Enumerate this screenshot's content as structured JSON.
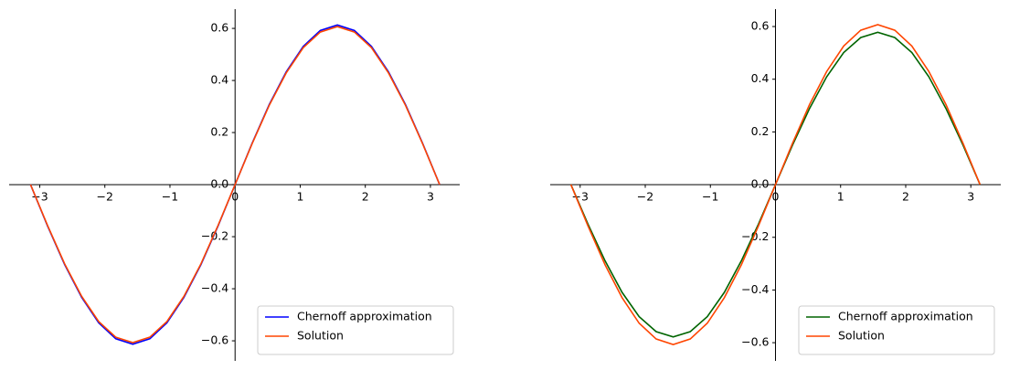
{
  "chart_data": [
    {
      "type": "line",
      "legend": "lower right",
      "x": [
        -3.1416,
        -2.8798,
        -2.618,
        -2.3562,
        -2.0944,
        -1.8326,
        -1.5708,
        -1.309,
        -1.0472,
        -0.7854,
        -0.5236,
        -0.2618,
        0,
        0.2618,
        0.5236,
        0.7854,
        1.0472,
        1.309,
        1.5708,
        1.8326,
        2.0944,
        2.3562,
        2.618,
        2.8798,
        3.1416
      ],
      "series": [
        {
          "name": "Chernoff approximation",
          "color": "#0000ff",
          "values": [
            0,
            -0.159,
            -0.307,
            -0.433,
            -0.531,
            -0.592,
            -0.613,
            -0.592,
            -0.531,
            -0.433,
            -0.307,
            -0.159,
            0,
            0.159,
            0.307,
            0.433,
            0.531,
            0.592,
            0.613,
            0.592,
            0.531,
            0.433,
            0.307,
            0.159,
            0
          ]
        },
        {
          "name": "Solution",
          "color": "#ff4500",
          "values": [
            0,
            -0.157,
            -0.304,
            -0.429,
            -0.526,
            -0.586,
            -0.607,
            -0.586,
            -0.526,
            -0.429,
            -0.304,
            -0.157,
            0,
            0.157,
            0.304,
            0.429,
            0.526,
            0.586,
            0.607,
            0.586,
            0.526,
            0.429,
            0.304,
            0.157,
            0
          ]
        }
      ],
      "xlim": [
        -3.47,
        3.45
      ],
      "ylim": [
        -0.677,
        0.674
      ],
      "xticks": [
        {
          "value": -3,
          "label": "−3"
        },
        {
          "value": -2,
          "label": "−2"
        },
        {
          "value": -1,
          "label": "−1"
        },
        0,
        1,
        2,
        3
      ],
      "yticks": [
        {
          "value": -0.6,
          "label": "−0.6"
        },
        {
          "value": -0.4,
          "label": "−0.4"
        },
        {
          "value": -0.2,
          "label": "−0.2"
        },
        {
          "value": 0,
          "label": "0.0"
        },
        0.2,
        0.4,
        0.6
      ]
    },
    {
      "type": "line",
      "legend": "lower right",
      "x": [
        -3.1416,
        -2.8798,
        -2.618,
        -2.3562,
        -2.0944,
        -1.8326,
        -1.5708,
        -1.309,
        -1.0472,
        -0.7854,
        -0.5236,
        -0.2618,
        0,
        0.2618,
        0.5236,
        0.7854,
        1.0472,
        1.309,
        1.5708,
        1.8326,
        2.0944,
        2.3562,
        2.618,
        2.8798,
        3.1416
      ],
      "series": [
        {
          "name": "Chernoff approximation",
          "color": "#006400",
          "values": [
            0,
            -0.15,
            -0.289,
            -0.409,
            -0.501,
            -0.558,
            -0.578,
            -0.558,
            -0.501,
            -0.409,
            -0.289,
            -0.15,
            0,
            0.15,
            0.289,
            0.409,
            0.501,
            0.558,
            0.578,
            0.558,
            0.501,
            0.409,
            0.289,
            0.15,
            0
          ]
        },
        {
          "name": "Solution",
          "color": "#ff4500",
          "values": [
            0,
            -0.157,
            -0.304,
            -0.429,
            -0.526,
            -0.586,
            -0.607,
            -0.586,
            -0.526,
            -0.429,
            -0.304,
            -0.157,
            0,
            0.157,
            0.304,
            0.429,
            0.526,
            0.586,
            0.607,
            0.586,
            0.526,
            0.429,
            0.304,
            0.157,
            0
          ]
        }
      ],
      "xlim": [
        -3.46,
        3.46
      ],
      "ylim": [
        -0.669,
        0.666
      ],
      "xticks": [
        {
          "value": -3,
          "label": "−3"
        },
        {
          "value": -2,
          "label": "−2"
        },
        {
          "value": -1,
          "label": "−1"
        },
        0,
        1,
        2,
        3
      ],
      "yticks": [
        {
          "value": -0.6,
          "label": "−0.6"
        },
        {
          "value": -0.4,
          "label": "−0.4"
        },
        {
          "value": -0.2,
          "label": "−0.2"
        },
        {
          "value": 0,
          "label": "0.0"
        },
        0.2,
        0.4,
        0.6
      ]
    }
  ]
}
